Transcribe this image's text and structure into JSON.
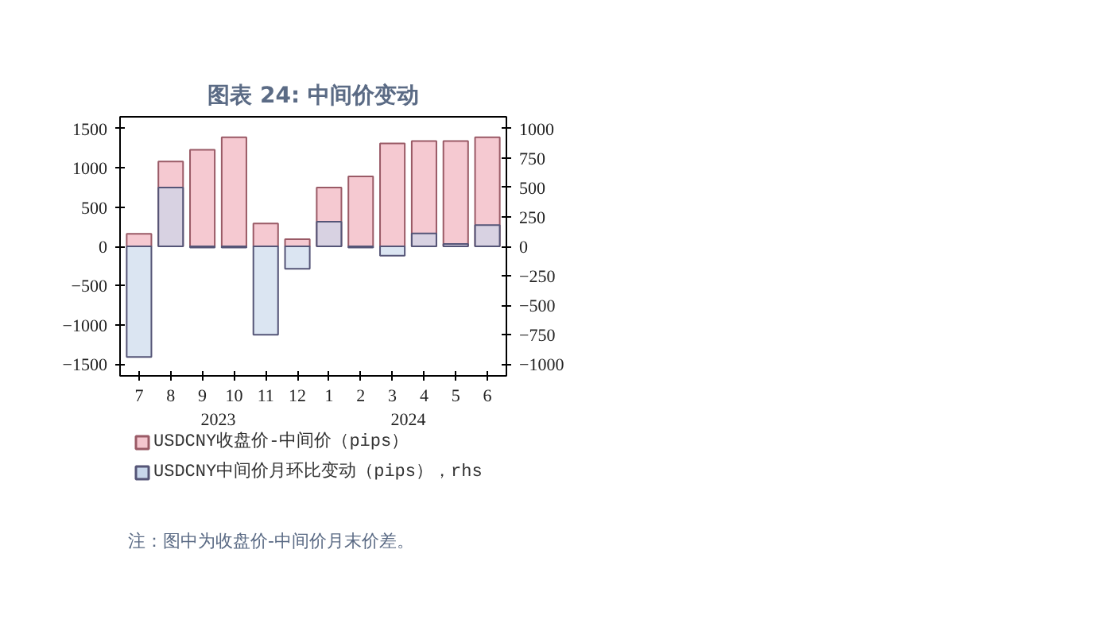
{
  "chart_data": {
    "type": "bar",
    "title": "图表 24: 中间价变动",
    "categories": [
      "7",
      "8",
      "9",
      "10",
      "11",
      "12",
      "1",
      "2",
      "3",
      "4",
      "5",
      "6"
    ],
    "series": [
      {
        "name": "USDCNY收盘价-中间价（pips）",
        "color": "#f4c6cf",
        "values": [
          160,
          1080,
          1230,
          1390,
          290,
          90,
          750,
          890,
          1310,
          1340,
          1340,
          1390
        ]
      },
      {
        "name": "USDCNY中间价月环比变动（pips），rhs",
        "color": "#c8d7eb",
        "axis": "y2",
        "values": [
          -940,
          500,
          -10,
          -10,
          -750,
          -190,
          210,
          -10,
          -80,
          110,
          20,
          180
        ]
      }
    ],
    "ylim": [
      -1650,
      1650
    ],
    "yticks": [
      -1500,
      -1000,
      -500,
      0,
      500,
      1000,
      1500
    ],
    "y2lim": [
      -1100,
      1100
    ],
    "y2ticks": [
      -1000,
      -750,
      -500,
      -250,
      0,
      250,
      500,
      750,
      1000
    ],
    "grid": false,
    "legend": "bottom",
    "annotations": [
      "2023",
      "2024",
      "注：图中为收盘价-中间价月末价差。"
    ]
  }
}
